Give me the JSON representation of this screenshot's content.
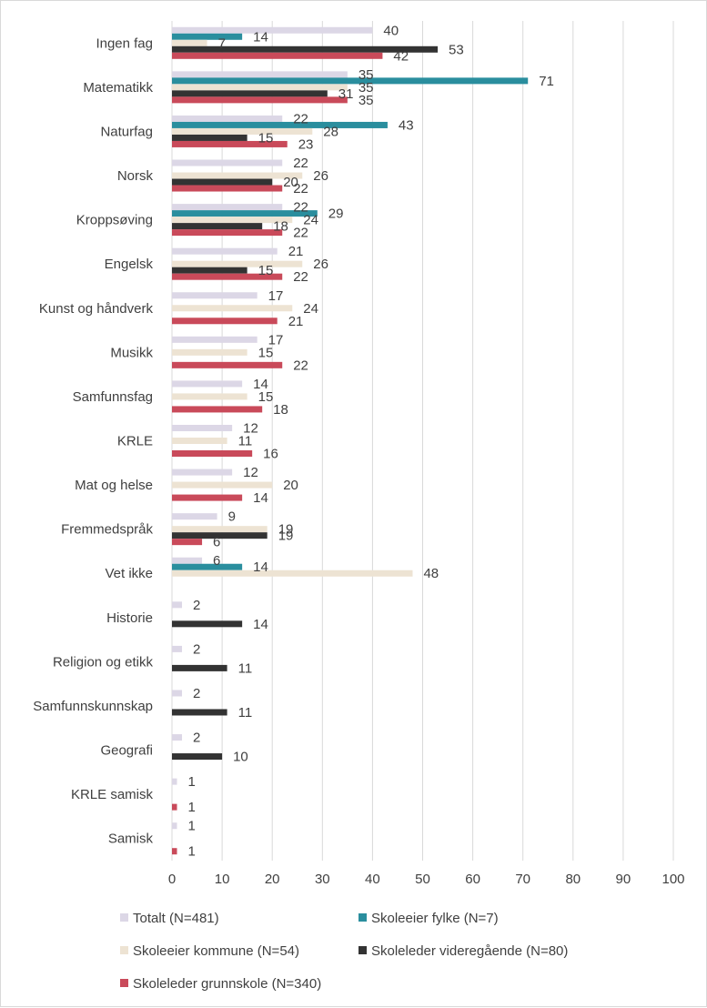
{
  "chart_data": {
    "type": "bar",
    "orientation": "horizontal",
    "categories": [
      "Ingen fag",
      "Matematikk",
      "Naturfag",
      "Norsk",
      "Kroppsøving",
      "Engelsk",
      "Kunst og håndverk",
      "Musikk",
      "Samfunnsfag",
      "KRLE",
      "Mat og helse",
      "Fremmedspråk",
      "Vet ikke",
      "Historie",
      "Religion og etikk",
      "Samfunnskunnskap",
      "Geografi",
      "KRLE samisk",
      "Samisk"
    ],
    "series": [
      {
        "name": "Totalt (N=481)",
        "color": "#dcd7e6",
        "values": [
          40,
          35,
          22,
          22,
          22,
          21,
          17,
          17,
          14,
          12,
          12,
          9,
          6,
          2,
          2,
          2,
          2,
          1,
          1
        ]
      },
      {
        "name": "Skoleeier fylke (N=7)",
        "color": "#2a8e9e",
        "values": [
          14,
          71,
          43,
          null,
          29,
          null,
          null,
          null,
          null,
          null,
          null,
          null,
          14,
          null,
          null,
          null,
          null,
          null,
          null
        ]
      },
      {
        "name": "Skoleeier kommune (N=54)",
        "color": "#ede3d3",
        "values": [
          7,
          35,
          28,
          26,
          24,
          26,
          24,
          15,
          15,
          11,
          20,
          19,
          48,
          null,
          null,
          null,
          null,
          null,
          null
        ]
      },
      {
        "name": "Skoleleder videregående (N=80)",
        "color": "#333333",
        "values": [
          53,
          31,
          15,
          20,
          18,
          15,
          null,
          null,
          null,
          null,
          null,
          19,
          null,
          14,
          11,
          11,
          10,
          null,
          null
        ]
      },
      {
        "name": "Skoleleder grunnskole (N=340)",
        "color": "#c94a5a",
        "values": [
          42,
          35,
          23,
          22,
          22,
          22,
          21,
          22,
          18,
          16,
          14,
          6,
          null,
          null,
          null,
          null,
          null,
          1,
          1
        ]
      }
    ],
    "xlim": [
      0,
      100
    ],
    "xticks": [
      "0",
      "10",
      "20",
      "30",
      "40",
      "50",
      "60",
      "70",
      "80",
      "90",
      "100"
    ],
    "grid": true,
    "legend_position": "bottom"
  }
}
